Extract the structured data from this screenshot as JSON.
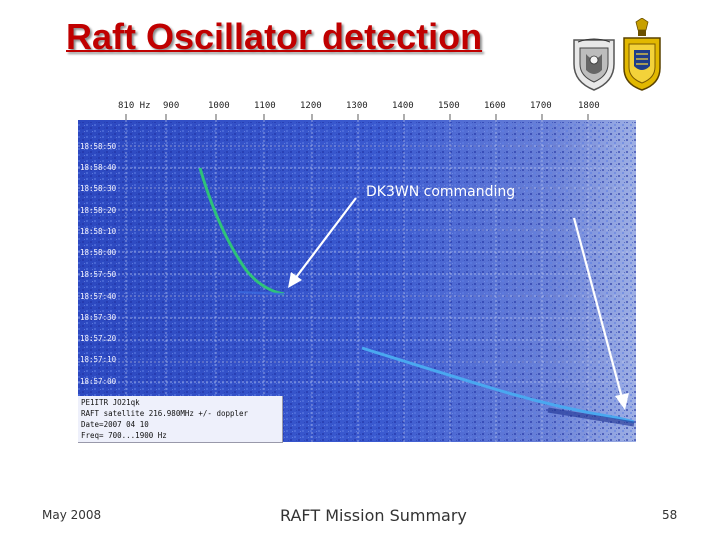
{
  "slide": {
    "title": "Raft Oscillator detection",
    "annotation": "DK3WN commanding",
    "footer_date": "May 2008",
    "footer_title": "RAFT Mission Summary",
    "page_number": "58"
  },
  "spectrogram": {
    "frequency_labels": [
      "810 Hz",
      "900",
      "1000",
      "1100",
      "1200",
      "1300",
      "1400",
      "1500",
      "1600",
      "1700",
      "1800"
    ],
    "time_labels": [
      "18:58:50",
      "18:58:40",
      "18:58:30",
      "18:58:20",
      "18:58:10",
      "18:58:00",
      "18:57:50",
      "18:57:40",
      "18:57:30",
      "18:57:20",
      "18:57:10",
      "18:57:00"
    ],
    "info_lines": [
      "PE1ITR JO21qk",
      "RAFT satellite  216.980MHz +/- doppler",
      "Date=2007 04 10",
      "Freq= 700...1900 Hz"
    ],
    "colors": {
      "background": "#3a58c8",
      "trace_green": "#2ec27a",
      "trace_blue": "#4aa8f0"
    }
  },
  "logos": {
    "left": "crest-icon",
    "right": "naval-academy-seal-icon"
  }
}
